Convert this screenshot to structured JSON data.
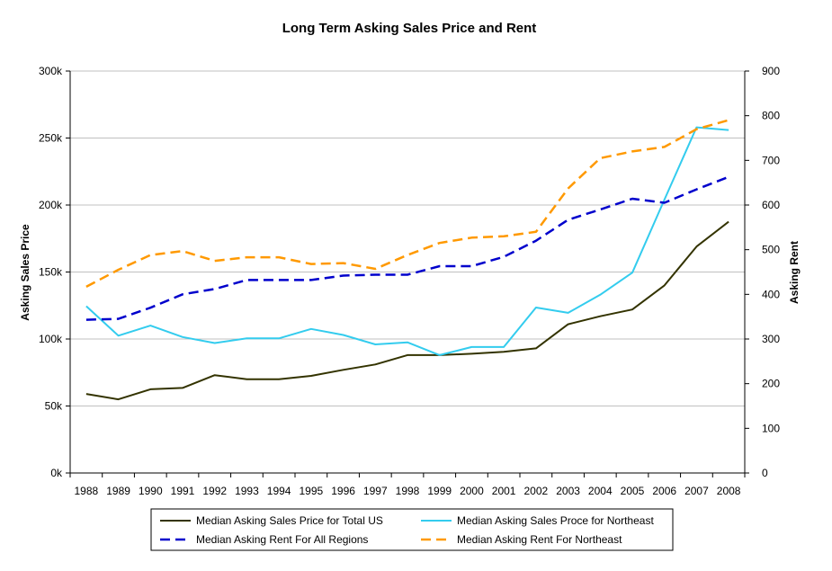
{
  "chart_data": {
    "type": "line",
    "title": "Long Term Asking Sales Price and Rent",
    "xlabel": "",
    "ylabel_left": "Asking Sales Price",
    "ylabel_right": "Asking Rent",
    "categories": [
      "1988",
      "1989",
      "1990",
      "1991",
      "1992",
      "1993",
      "1994",
      "1995",
      "1996",
      "1997",
      "1998",
      "1999",
      "2000",
      "2001",
      "2002",
      "2003",
      "2004",
      "2005",
      "2006",
      "2007",
      "2008"
    ],
    "y_left": {
      "min": 0,
      "max": 300000,
      "step": 50000,
      "tick_labels": [
        "0k",
        "50k",
        "100k",
        "150k",
        "200k",
        "250k",
        "300k"
      ]
    },
    "y_right": {
      "min": 0,
      "max": 900,
      "step": 100,
      "tick_labels": [
        "0",
        "100",
        "200",
        "300",
        "400",
        "500",
        "600",
        "700",
        "800",
        "900"
      ]
    },
    "grid": "horizontal",
    "legend_position": "bottom",
    "series": [
      {
        "name": "Median Asking Sales Price for Total US",
        "axis": "left",
        "color": "#333300",
        "dash": "solid",
        "values": [
          59000,
          55000,
          62500,
          63500,
          73000,
          70000,
          70000,
          72500,
          77000,
          81000,
          88000,
          88000,
          89000,
          90500,
          93000,
          111000,
          117000,
          122000,
          140000,
          169000,
          187500
        ]
      },
      {
        "name": "Median Asking Sales Proce for Northeast",
        "axis": "left",
        "color": "#33CCEE",
        "dash": "solid",
        "values": [
          124500,
          102500,
          110000,
          101500,
          97000,
          100500,
          100500,
          107500,
          103000,
          96000,
          97500,
          88000,
          94000,
          94000,
          123500,
          119500,
          133000,
          149500,
          204000,
          258000,
          256000
        ]
      },
      {
        "name": "Median Asking Rent For All Regions",
        "axis": "right",
        "color": "#0000CC",
        "dash": "dashed",
        "values": [
          343,
          345,
          370,
          400,
          412,
          432,
          432,
          432,
          442,
          444,
          444,
          463,
          463,
          484,
          520,
          567,
          590,
          614,
          605,
          635,
          663
        ]
      },
      {
        "name": "Median Asking Rent For Northeast",
        "axis": "right",
        "color": "#FF9900",
        "dash": "dashed",
        "values": [
          417,
          455,
          488,
          497,
          475,
          483,
          483,
          468,
          470,
          457,
          488,
          515,
          527,
          530,
          540,
          637,
          705,
          720,
          730,
          770,
          790
        ]
      }
    ]
  }
}
